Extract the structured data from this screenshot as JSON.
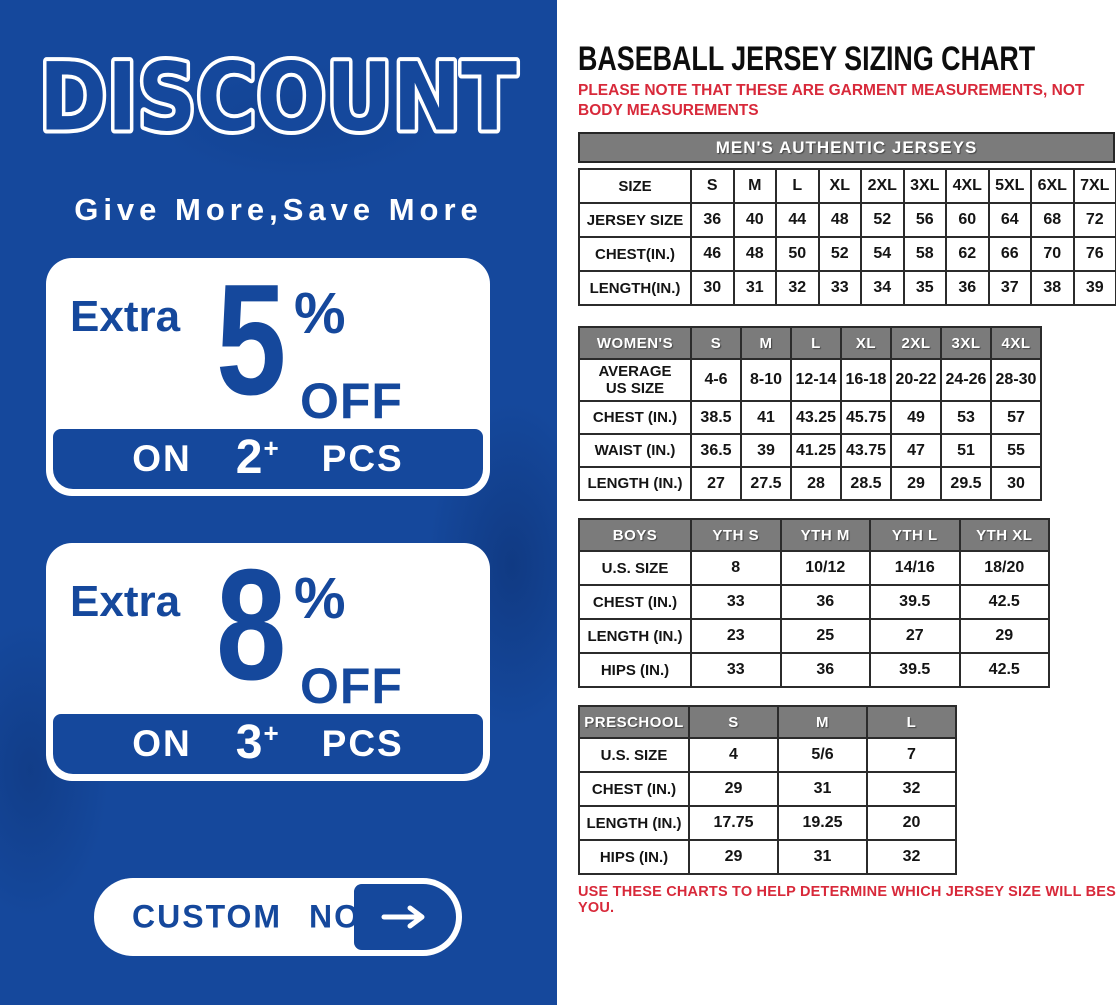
{
  "left_panel": {
    "title": "DISCOUNT",
    "tagline": "Give More,Save More",
    "offers": [
      {
        "prefix": "Extra",
        "percent": "5",
        "percent_sign": "%",
        "off": "OFF",
        "on": "ON",
        "qty": "2",
        "plus": "+",
        "pcs": "PCS"
      },
      {
        "prefix": "Extra",
        "percent": "8",
        "percent_sign": "%",
        "off": "OFF",
        "on": "ON",
        "qty": "3",
        "plus": "+",
        "pcs": "PCS"
      }
    ],
    "cta": {
      "label": "CUSTOM NOW",
      "arrow_icon": "arrow-right"
    }
  },
  "right_panel": {
    "title": "BASEBALL JERSEY SIZING CHART",
    "note": "PLEASE NOTE THAT THESE ARE GARMENT MEASUREMENTS, NOT BODY MEASUREMENTS",
    "footer": "USE THESE CHARTS TO HELP DETERMINE WHICH JERSEY SIZE WILL BEST FIT YOU.",
    "tables": {
      "mens": {
        "title": "MEN'S AUTHENTIC JERSEYS",
        "rows": [
          [
            "SIZE",
            "S",
            "M",
            "L",
            "XL",
            "2XL",
            "3XL",
            "4XL",
            "5XL",
            "6XL",
            "7XL"
          ],
          [
            "JERSEY SIZE",
            "36",
            "40",
            "44",
            "48",
            "52",
            "56",
            "60",
            "64",
            "68",
            "72"
          ],
          [
            "CHEST(IN.)",
            "46",
            "48",
            "50",
            "52",
            "54",
            "58",
            "62",
            "66",
            "70",
            "76"
          ],
          [
            "LENGTH(IN.)",
            "30",
            "31",
            "32",
            "33",
            "34",
            "35",
            "36",
            "37",
            "38",
            "39"
          ]
        ]
      },
      "womens": {
        "header": [
          "WOMEN'S",
          "S",
          "M",
          "L",
          "XL",
          "2XL",
          "3XL",
          "4XL"
        ],
        "rows": [
          [
            "AVERAGE\nUS SIZE",
            "4-6",
            "8-10",
            "12-14",
            "16-18",
            "20-22",
            "24-26",
            "28-30"
          ],
          [
            "CHEST (IN.)",
            "38.5",
            "41",
            "43.25",
            "45.75",
            "49",
            "53",
            "57"
          ],
          [
            "WAIST (IN.)",
            "36.5",
            "39",
            "41.25",
            "43.75",
            "47",
            "51",
            "55"
          ],
          [
            "LENGTH (IN.)",
            "27",
            "27.5",
            "28",
            "28.5",
            "29",
            "29.5",
            "30"
          ]
        ]
      },
      "boys": {
        "header": [
          "BOYS",
          "YTH S",
          "YTH M",
          "YTH L",
          "YTH XL"
        ],
        "rows": [
          [
            "U.S. SIZE",
            "8",
            "10/12",
            "14/16",
            "18/20"
          ],
          [
            "CHEST (IN.)",
            "33",
            "36",
            "39.5",
            "42.5"
          ],
          [
            "LENGTH (IN.)",
            "23",
            "25",
            "27",
            "29"
          ],
          [
            "HIPS (IN.)",
            "33",
            "36",
            "39.5",
            "42.5"
          ]
        ]
      },
      "preschool": {
        "header": [
          "PRESCHOOL",
          "S",
          "M",
          "L"
        ],
        "rows": [
          [
            "U.S. SIZE",
            "4",
            "5/6",
            "7"
          ],
          [
            "CHEST (IN.)",
            "29",
            "31",
            "32"
          ],
          [
            "LENGTH (IN.)",
            "17.75",
            "19.25",
            "20"
          ],
          [
            "HIPS (IN.)",
            "29",
            "31",
            "32"
          ]
        ]
      }
    }
  },
  "colors": {
    "banner_blue": "#15489c",
    "table_header_gray": "#7b7b7b",
    "note_red": "#d8293a",
    "border_dark": "#2b2b2b"
  }
}
